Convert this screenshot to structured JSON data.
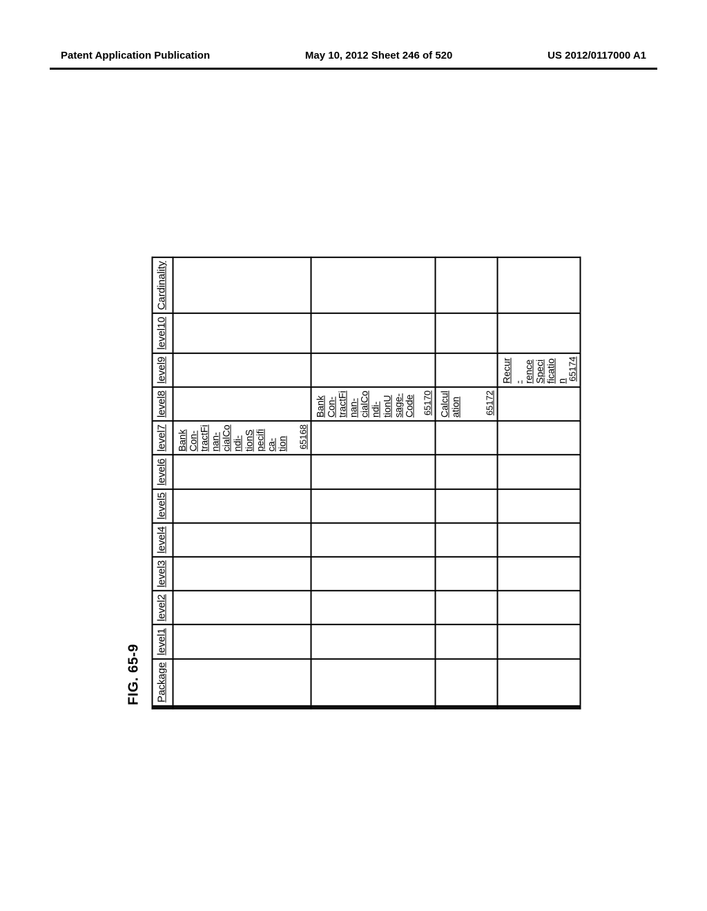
{
  "header": {
    "left": "Patent Application Publication",
    "center": "May 10, 2012  Sheet 246 of 520",
    "right": "US 2012/0117000 A1"
  },
  "figure_label": "FIG. 65-9",
  "columns": [
    "Package",
    "level1",
    "level2",
    "level3",
    "level4",
    "level5",
    "level6",
    "level7",
    "level8",
    "level9",
    "level10",
    "Cardinality"
  ],
  "rows": [
    {
      "height_class": "r1",
      "cells": {
        "level7": {
          "text": "BankCon-\ntractFinan-\ncialCondi-\ntionSpecifica-\ntion",
          "num": "65168"
        }
      }
    },
    {
      "height_class": "r2",
      "cells": {
        "level8": {
          "text": "BankCon-\ntractFinan-\ncialCondi-\ntionUsage-\nCode",
          "num": "65170"
        }
      }
    },
    {
      "height_class": "r3",
      "cells": {
        "level8": {
          "text": "Calculation",
          "num": "65172"
        }
      }
    },
    {
      "height_class": "r4",
      "cells": {
        "level9": {
          "text": "Recur-\nrenceSpeci\nfication",
          "num": "65174"
        }
      }
    }
  ]
}
